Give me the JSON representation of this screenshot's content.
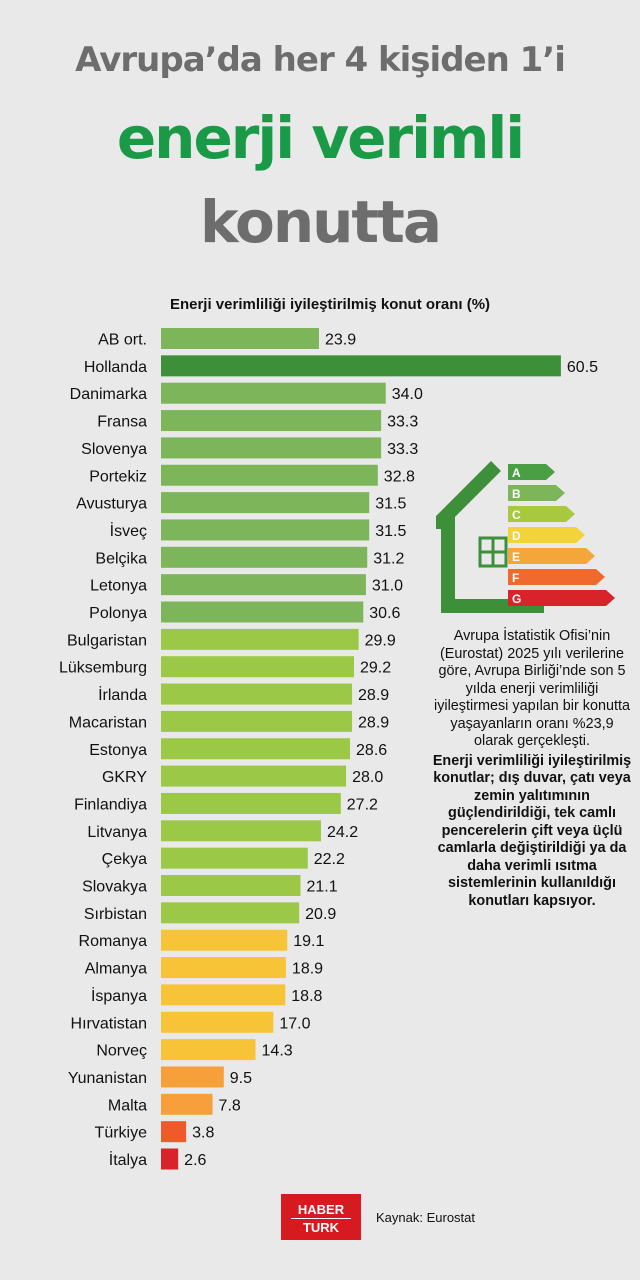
{
  "title": {
    "line1": "Avrupa’da her 4 kişiden 1’i",
    "line2": "enerji verimli",
    "line3": "konutta"
  },
  "chart_data": {
    "type": "bar",
    "orientation": "horizontal",
    "title": "Enerji verimliliği iyileştirilmiş konut oranı (%)",
    "categories": [
      "AB ort.",
      "Hollanda",
      "Danimarka",
      "Fransa",
      "Slovenya",
      "Portekiz",
      "Avusturya",
      "İsveç",
      "Belçika",
      "Letonya",
      "Polonya",
      "Bulgaristan",
      "Lüksemburg",
      "İrlanda",
      "Macaristan",
      "Estonya",
      "GKRY",
      "Finlandiya",
      "Litvanya",
      "Çekya",
      "Slovakya",
      "Sırbistan",
      "Romanya",
      "Almanya",
      "İspanya",
      "Hırvatistan",
      "Norveç",
      "Yunanistan",
      "Malta",
      "Türkiye",
      "İtalya"
    ],
    "values": [
      23.9,
      60.5,
      34.0,
      33.3,
      33.3,
      32.8,
      31.5,
      31.5,
      31.2,
      31.0,
      30.6,
      29.9,
      29.2,
      28.9,
      28.9,
      28.6,
      28.0,
      27.2,
      24.2,
      22.2,
      21.1,
      20.9,
      19.1,
      18.9,
      18.8,
      17.0,
      14.3,
      9.5,
      7.8,
      3.8,
      2.6
    ],
    "value_labels": [
      "23.9",
      "60.5",
      "34.0",
      "33.3",
      "33.3",
      "32.8",
      "31.5",
      "31.5",
      "31.2",
      "31.0",
      "30.6",
      "29.9",
      "29.2",
      "28.9",
      "28.9",
      "28.6",
      "28.0",
      "27.2",
      "24.2",
      "22.2",
      "21.1",
      "20.9",
      "19.1",
      "18.9",
      "18.8",
      "17.0",
      "14.3",
      "9.5",
      "7.8",
      "3.8",
      "2.6"
    ],
    "bar_colors": [
      "#7db55a",
      "#3d8f3a",
      "#7db55a",
      "#7db55a",
      "#7db55a",
      "#7db55a",
      "#7db55a",
      "#7db55a",
      "#7db55a",
      "#7db55a",
      "#7db55a",
      "#9cc847",
      "#9cc847",
      "#9cc847",
      "#9cc847",
      "#9cc847",
      "#9cc847",
      "#9cc847",
      "#9cc847",
      "#9cc847",
      "#9cc847",
      "#9cc847",
      "#f6c436",
      "#f6c436",
      "#f6c436",
      "#f6c436",
      "#f6c436",
      "#f7a03b",
      "#f7a03b",
      "#ee5a2a",
      "#d9232a"
    ],
    "grid": false
  },
  "energy_label": {
    "grades": [
      "A",
      "B",
      "C",
      "D",
      "E",
      "F",
      "G"
    ],
    "grade_colors": [
      "#4a9e44",
      "#7db55a",
      "#a8c93f",
      "#f3d23a",
      "#f5a63a",
      "#ef6a2c",
      "#d9232a"
    ],
    "house_color": "#3d8f3a"
  },
  "description": {
    "text": "Avrupa İstatistik Ofisi’nin (Eurostat) 2025 yılı verilerine göre, Avrupa Birliği’nde son 5 yılda enerji verimliliği iyileştirmesi yapılan bir konutta yaşayanların oranı %23,9 olarak gerçekleşti.",
    "bold_text": "Enerji verimliliği iyileştirilmiş konutlar; dış duvar, çatı veya zemin yalıtımının güçlendirildiği, tek camlı pencerelerin çift veya üçlü camlarla değiştirildiği ya da daha verimli ısıtma sistemlerinin kullanıldığı konutları kapsıyor."
  },
  "footer": {
    "logo_top": "HABER",
    "logo_bottom": "TURK",
    "source": "Kaynak: Eurostat"
  }
}
